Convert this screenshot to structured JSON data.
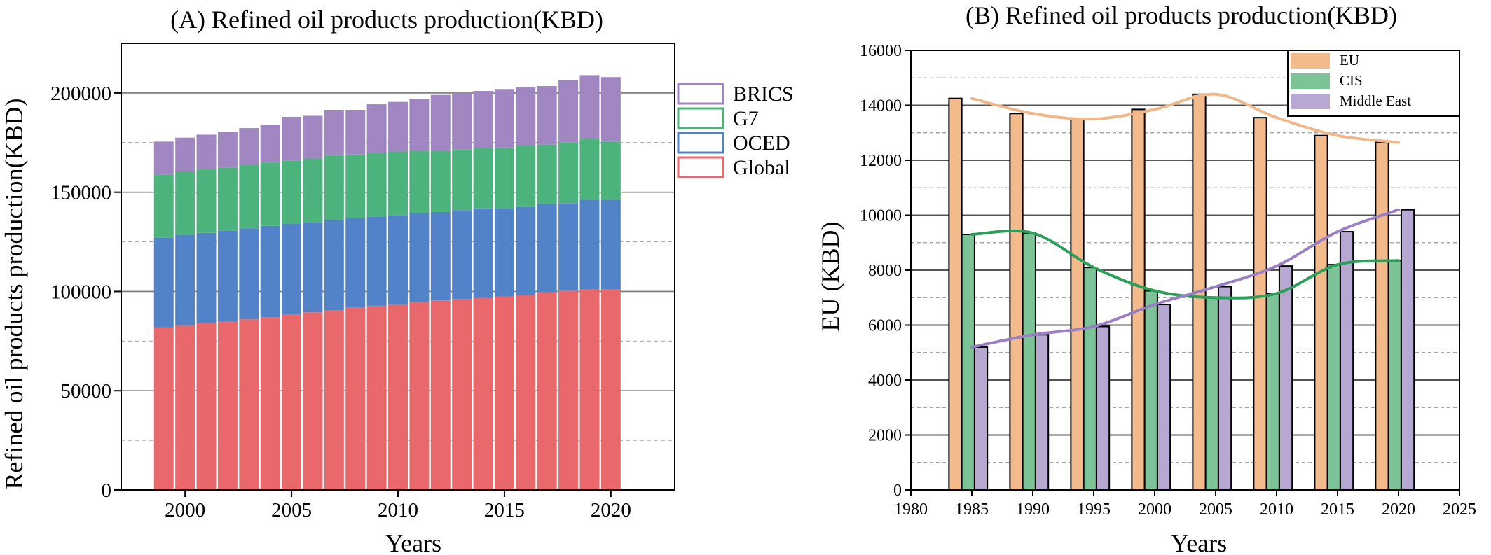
{
  "chart_data": [
    {
      "panel": "A",
      "type": "bar",
      "stacked": true,
      "title": "(A) Refined oil products production(KBD)",
      "xlabel": "Years",
      "ylabel": "Refined oil products production(KBD)",
      "xlim": [
        1997,
        2023
      ],
      "ylim": [
        0,
        225000
      ],
      "xticks": [
        "2000",
        "2005",
        "2010",
        "2015",
        "2020"
      ],
      "yticks": [
        "0",
        "50000",
        "100000",
        "150000",
        "200000"
      ],
      "grid": true,
      "legend_position": "right",
      "categories": [
        1999,
        2000,
        2001,
        2002,
        2003,
        2004,
        2005,
        2006,
        2007,
        2008,
        2009,
        2010,
        2011,
        2012,
        2013,
        2014,
        2015,
        2016,
        2017,
        2018,
        2019,
        2020
      ],
      "series": [
        {
          "name": "Global",
          "color": "#e8686b",
          "values": [
            82000,
            83000,
            84000,
            85000,
            86000,
            87000,
            88500,
            89500,
            90500,
            92000,
            92800,
            93500,
            94500,
            95500,
            96200,
            96800,
            97500,
            98300,
            99500,
            100500,
            101000,
            101000
          ]
        },
        {
          "name": "OCED",
          "color": "#5283c8",
          "values": [
            45000,
            45500,
            45500,
            45500,
            45800,
            46000,
            45500,
            45500,
            45500,
            45000,
            45000,
            45000,
            45000,
            44500,
            44800,
            45000,
            44500,
            44200,
            44500,
            44000,
            45000,
            45000
          ]
        },
        {
          "name": "G7",
          "color": "#4cb37c",
          "values": [
            32000,
            32000,
            32000,
            32000,
            32000,
            32000,
            32000,
            32000,
            32500,
            32000,
            32000,
            32000,
            31500,
            31000,
            30500,
            30500,
            30500,
            31000,
            30000,
            30500,
            31000,
            29500
          ]
        },
        {
          "name": "BRICS",
          "color": "#a187c2",
          "values": [
            16500,
            17000,
            17500,
            18000,
            18500,
            19000,
            22000,
            21500,
            23000,
            22500,
            24500,
            25000,
            26000,
            28000,
            28500,
            28700,
            29500,
            29500,
            29500,
            31500,
            32000,
            32500
          ]
        }
      ]
    },
    {
      "panel": "B",
      "type": "bar",
      "title": "(B)  Refined oil products production(KBD)",
      "xlabel": "Years",
      "ylabel": "EU (KBD)",
      "xlim": [
        1980,
        2025
      ],
      "ylim": [
        0,
        16000
      ],
      "xticks": [
        "1980",
        "1985",
        "1990",
        "1995",
        "2000",
        "2005",
        "2010",
        "2015",
        "2020",
        "2025"
      ],
      "yticks": [
        "0",
        "2000",
        "4000",
        "6000",
        "8000",
        "10000",
        "12000",
        "14000",
        "16000"
      ],
      "grid": true,
      "legend_position": "top-right",
      "categories": [
        1985,
        1990,
        1995,
        2000,
        2005,
        2010,
        2015,
        2020
      ],
      "series": [
        {
          "name": "EU",
          "color": "#f3bb8c",
          "values": [
            14250,
            13700,
            13500,
            13850,
            14400,
            13550,
            12900,
            12650
          ],
          "trend": [
            [
              1985,
              14250
            ],
            [
              1990,
              13700
            ],
            [
              1995,
              13500
            ],
            [
              2000,
              13850
            ],
            [
              2005,
              14400
            ],
            [
              2010,
              13550
            ],
            [
              2015,
              12900
            ],
            [
              2020,
              12650
            ]
          ]
        },
        {
          "name": "CIS",
          "color": "#7cc497",
          "values": [
            9300,
            9350,
            8100,
            7250,
            7000,
            7150,
            8200,
            8350
          ],
          "trend": [
            [
              1985,
              9300
            ],
            [
              1990,
              9350
            ],
            [
              1995,
              8100
            ],
            [
              2000,
              7250
            ],
            [
              2005,
              7000
            ],
            [
              2010,
              7150
            ],
            [
              2015,
              8200
            ],
            [
              2020,
              8350
            ]
          ]
        },
        {
          "name": "Middle East",
          "color": "#b7a8d2",
          "values": [
            5200,
            5650,
            5950,
            6750,
            7400,
            8150,
            9400,
            10200
          ],
          "trend": [
            [
              1985,
              5200
            ],
            [
              1990,
              5650
            ],
            [
              1995,
              5950
            ],
            [
              2000,
              6750
            ],
            [
              2005,
              7400
            ],
            [
              2010,
              8150
            ],
            [
              2015,
              9400
            ],
            [
              2020,
              10200
            ]
          ]
        }
      ],
      "trend_colors": {
        "EU": "#f0b88a",
        "CIS": "#2e9e5b",
        "Middle East": "#9b7fc4"
      }
    }
  ]
}
